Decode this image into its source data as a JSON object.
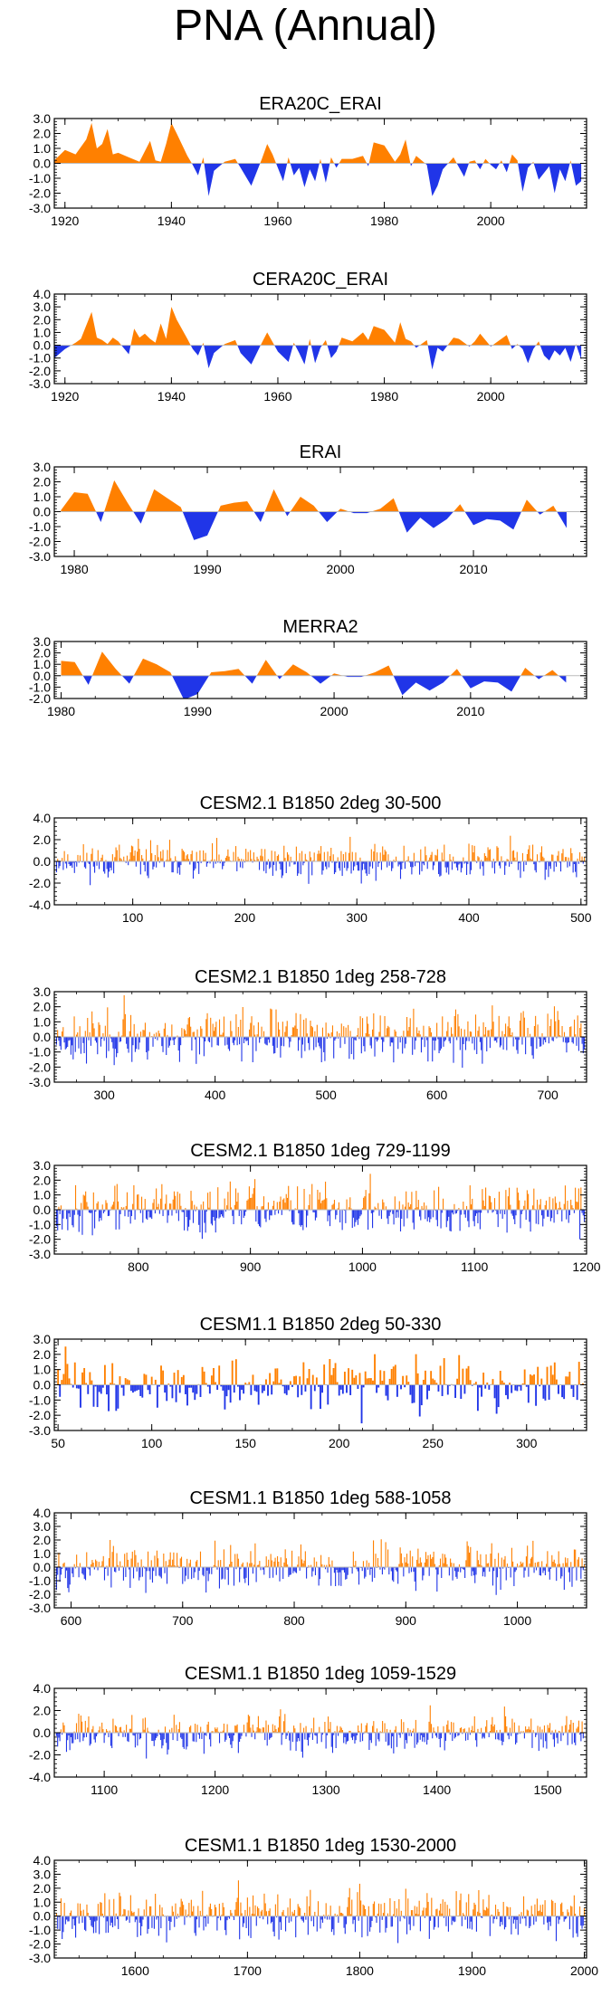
{
  "title": "PNA (Annual)",
  "colors": {
    "positive": "#ff8000",
    "negative": "#2035e8",
    "axis": "#000000"
  },
  "chart_data": [
    {
      "type": "area",
      "title": "ERA20C_ERAI",
      "xlim": [
        1918,
        2018
      ],
      "ylim": [
        -3.0,
        3.0
      ],
      "yticks": [
        3.0,
        2.0,
        1.0,
        0.0,
        -1.0,
        -2.0,
        -3.0
      ],
      "xticks": [
        1920,
        1940,
        1960,
        1980,
        2000
      ],
      "x": [
        1918,
        1920,
        1922,
        1924,
        1925,
        1926,
        1927,
        1928,
        1929,
        1930,
        1932,
        1934,
        1936,
        1937,
        1938,
        1939,
        1940,
        1941,
        1943,
        1944,
        1945,
        1946,
        1947,
        1948,
        1950,
        1952,
        1953,
        1955,
        1957,
        1958,
        1959,
        1961,
        1962,
        1963,
        1964,
        1965,
        1966,
        1967,
        1968,
        1969,
        1970,
        1971,
        1972,
        1974,
        1976,
        1977,
        1978,
        1980,
        1982,
        1983,
        1984,
        1985,
        1986,
        1988,
        1989,
        1990,
        1991,
        1993,
        1995,
        1996,
        1997,
        1998,
        1999,
        2000,
        2001,
        2002,
        2003,
        2004,
        2005,
        2006,
        2007,
        2008,
        2009,
        2011,
        2012,
        2013,
        2014,
        2015,
        2016,
        2017
      ],
      "y": [
        0.2,
        0.9,
        0.6,
        1.6,
        2.7,
        1.0,
        1.3,
        2.3,
        0.6,
        0.7,
        0.4,
        0.1,
        1.5,
        0.2,
        0.1,
        1.3,
        2.7,
        2.0,
        0.5,
        -0.1,
        -0.8,
        0.4,
        -2.2,
        -0.5,
        0.1,
        0.3,
        -0.3,
        -1.5,
        0.3,
        1.3,
        0.6,
        -1.2,
        0.4,
        -0.8,
        -0.3,
        -1.6,
        -0.4,
        -1.2,
        0.3,
        -1.3,
        0.4,
        -0.3,
        0.3,
        0.3,
        0.5,
        -0.2,
        1.4,
        1.2,
        0.1,
        0.6,
        1.6,
        -0.2,
        0.5,
        -0.1,
        -2.2,
        -1.5,
        -0.4,
        0.4,
        -0.9,
        0.1,
        0.2,
        -0.4,
        0.3,
        -0.1,
        -0.4,
        0.2,
        -0.6,
        0.6,
        0.2,
        -1.9,
        -0.3,
        0.1,
        -1.1,
        -0.2,
        -2.0,
        -0.4,
        -1.2,
        0.2,
        -1.5,
        -1.2
      ]
    },
    {
      "type": "area",
      "title": "CERA20C_ERAI",
      "xlim": [
        1918,
        2018
      ],
      "ylim": [
        -3.0,
        4.0
      ],
      "yticks": [
        4.0,
        3.0,
        2.0,
        1.0,
        0.0,
        -1.0,
        -2.0,
        -3.0
      ],
      "xticks": [
        1920,
        1940,
        1960,
        1980,
        2000
      ],
      "x": [
        1918,
        1920,
        1922,
        1923,
        1925,
        1926,
        1927,
        1928,
        1929,
        1930,
        1931,
        1932,
        1933,
        1934,
        1935,
        1936,
        1937,
        1938,
        1939,
        1940,
        1941,
        1943,
        1944,
        1945,
        1946,
        1947,
        1948,
        1950,
        1952,
        1953,
        1955,
        1957,
        1958,
        1960,
        1962,
        1963,
        1964,
        1965,
        1966,
        1967,
        1968,
        1969,
        1970,
        1971,
        1972,
        1974,
        1976,
        1977,
        1978,
        1980,
        1982,
        1983,
        1984,
        1985,
        1986,
        1988,
        1989,
        1990,
        1991,
        1993,
        1994,
        1996,
        1997,
        1998,
        2000,
        2001,
        2003,
        2004,
        2005,
        2006,
        2007,
        2008,
        2009,
        2010,
        2011,
        2012,
        2013,
        2014,
        2015,
        2016,
        2017
      ],
      "y": [
        -1.0,
        -0.3,
        0.2,
        0.5,
        2.6,
        0.6,
        0.4,
        0.1,
        0.6,
        0.3,
        -0.2,
        -0.7,
        1.3,
        0.6,
        0.9,
        0.5,
        0.2,
        1.7,
        0.5,
        3.0,
        2.0,
        0.5,
        -0.3,
        -0.8,
        0.2,
        -1.8,
        -0.6,
        0.1,
        0.4,
        -0.6,
        -1.5,
        0.2,
        1.0,
        -0.5,
        -1.3,
        0.2,
        -0.6,
        -1.5,
        0.5,
        -1.4,
        -0.2,
        0.4,
        -1.0,
        -0.5,
        0.6,
        0.3,
        1.0,
        0.4,
        1.5,
        1.2,
        0.2,
        1.8,
        0.5,
        0.3,
        -0.2,
        0.4,
        -1.9,
        -0.2,
        -0.5,
        0.6,
        0.5,
        -0.1,
        0.3,
        0.9,
        -0.1,
        0.2,
        0.8,
        -0.3,
        0.1,
        -0.3,
        -1.4,
        -0.3,
        0.3,
        -0.8,
        -1.2,
        -0.4,
        -0.8,
        -0.2,
        -1.3,
        0.1,
        -1.1
      ]
    },
    {
      "type": "area",
      "title": "ERAI",
      "xlim": [
        1978.5,
        2018.5
      ],
      "ylim": [
        -3.0,
        3.0
      ],
      "yticks": [
        3.0,
        2.0,
        1.0,
        0.0,
        -1.0,
        -2.0,
        -3.0
      ],
      "xticks": [
        1980,
        1990,
        2000,
        2010
      ],
      "x": [
        1979,
        1980,
        1981,
        1982,
        1983,
        1984,
        1985,
        1986,
        1987,
        1988,
        1989,
        1990,
        1991,
        1992,
        1993,
        1994,
        1995,
        1996,
        1997,
        1998,
        1999,
        2000,
        2001,
        2002,
        2003,
        2004,
        2005,
        2006,
        2007,
        2008,
        2009,
        2010,
        2011,
        2012,
        2013,
        2014,
        2015,
        2016,
        2017
      ],
      "y": [
        0.1,
        1.3,
        1.2,
        -0.7,
        2.1,
        0.6,
        -0.8,
        1.5,
        0.9,
        0.3,
        -1.9,
        -1.6,
        0.4,
        0.6,
        0.7,
        -0.7,
        1.5,
        -0.3,
        1.0,
        0.4,
        -0.7,
        0.2,
        -0.1,
        -0.1,
        0.2,
        0.9,
        -1.4,
        -0.4,
        -1.1,
        -0.5,
        0.5,
        -0.9,
        -0.5,
        -0.6,
        -1.2,
        0.8,
        -0.2,
        0.4,
        -1.1
      ]
    },
    {
      "type": "area",
      "title": "MERRA2",
      "xlim": [
        1979.5,
        2018.5
      ],
      "ylim": [
        -2.0,
        3.0
      ],
      "yticks": [
        3.0,
        2.0,
        1.0,
        0.0,
        -1.0,
        -2.0
      ],
      "xticks": [
        1980,
        1990,
        2000,
        2010
      ],
      "x": [
        1980,
        1981,
        1982,
        1983,
        1984,
        1985,
        1986,
        1987,
        1988,
        1989,
        1990,
        1991,
        1992,
        1993,
        1994,
        1995,
        1996,
        1997,
        1998,
        1999,
        2000,
        2001,
        2002,
        2003,
        2004,
        2005,
        2006,
        2007,
        2008,
        2009,
        2010,
        2011,
        2012,
        2013,
        2014,
        2015,
        2016,
        2017
      ],
      "y": [
        1.3,
        1.2,
        -0.8,
        2.1,
        0.6,
        -0.7,
        1.5,
        1.0,
        0.3,
        -2.1,
        -1.6,
        0.3,
        0.4,
        0.6,
        -0.7,
        1.4,
        -0.3,
        1.0,
        0.3,
        -0.7,
        0.2,
        -0.1,
        -0.1,
        0.3,
        0.9,
        -1.7,
        -0.6,
        -1.3,
        -0.6,
        0.6,
        -1.1,
        -0.5,
        -0.6,
        -1.4,
        0.7,
        -0.3,
        0.5,
        -0.6
      ]
    },
    {
      "type": "area",
      "title": "CESM2.1 B1850 2deg 30-500",
      "xlim": [
        30,
        505
      ],
      "seed": 11,
      "ylim": [
        -4.0,
        4.0
      ],
      "yticks": [
        4.0,
        2.0,
        0.0,
        -2.0,
        -4.0
      ],
      "xticks": [
        100,
        200,
        300,
        400,
        500
      ]
    },
    {
      "type": "area",
      "title": "CESM2.1 B1850 1deg 258-728",
      "xlim": [
        255,
        735
      ],
      "seed": 23,
      "ylim": [
        -3.0,
        3.0
      ],
      "yticks": [
        3.0,
        2.0,
        1.0,
        0.0,
        -1.0,
        -2.0,
        -3.0
      ],
      "xticks": [
        300,
        400,
        500,
        600,
        700
      ]
    },
    {
      "type": "area",
      "title": "CESM2.1 B1850 1deg 729-1199",
      "xlim": [
        725,
        1200
      ],
      "seed": 37,
      "ylim": [
        -3.0,
        3.0
      ],
      "yticks": [
        3.0,
        2.0,
        1.0,
        0.0,
        -1.0,
        -2.0,
        -3.0
      ],
      "xticks": [
        800,
        900,
        1000,
        1100,
        1200
      ]
    },
    {
      "type": "area",
      "title": "CESM1.1 B1850 2deg 50-330",
      "xlim": [
        48,
        332
      ],
      "seed": 41,
      "ylim": [
        -3.0,
        3.0
      ],
      "yticks": [
        3.0,
        2.0,
        1.0,
        0.0,
        -1.0,
        -2.0,
        -3.0
      ],
      "xticks": [
        50,
        100,
        150,
        200,
        250,
        300
      ]
    },
    {
      "type": "area",
      "title": "CESM1.1 B1850 1deg 588-1058",
      "xlim": [
        585,
        1062
      ],
      "seed": 53,
      "ylim": [
        -3.0,
        4.0
      ],
      "yticks": [
        4.0,
        3.0,
        2.0,
        1.0,
        0.0,
        -1.0,
        -2.0,
        -3.0
      ],
      "xticks": [
        600,
        700,
        800,
        900,
        1000
      ]
    },
    {
      "type": "area",
      "title": "CESM1.1 B1850 1deg 1059-1529",
      "xlim": [
        1055,
        1535
      ],
      "seed": 67,
      "ylim": [
        -4.0,
        4.0
      ],
      "yticks": [
        4.0,
        2.0,
        0.0,
        -2.0,
        -4.0
      ],
      "xticks": [
        1100,
        1200,
        1300,
        1400,
        1500
      ]
    },
    {
      "type": "area",
      "title": "CESM1.1 B1850 1deg 1530-2000",
      "xlim": [
        1528,
        2002
      ],
      "seed": 79,
      "ylim": [
        -3.0,
        4.0
      ],
      "yticks": [
        4.0,
        3.0,
        2.0,
        1.0,
        0.0,
        -1.0,
        -2.0,
        -3.0
      ],
      "xticks": [
        1600,
        1700,
        1800,
        1900,
        2000
      ]
    }
  ]
}
